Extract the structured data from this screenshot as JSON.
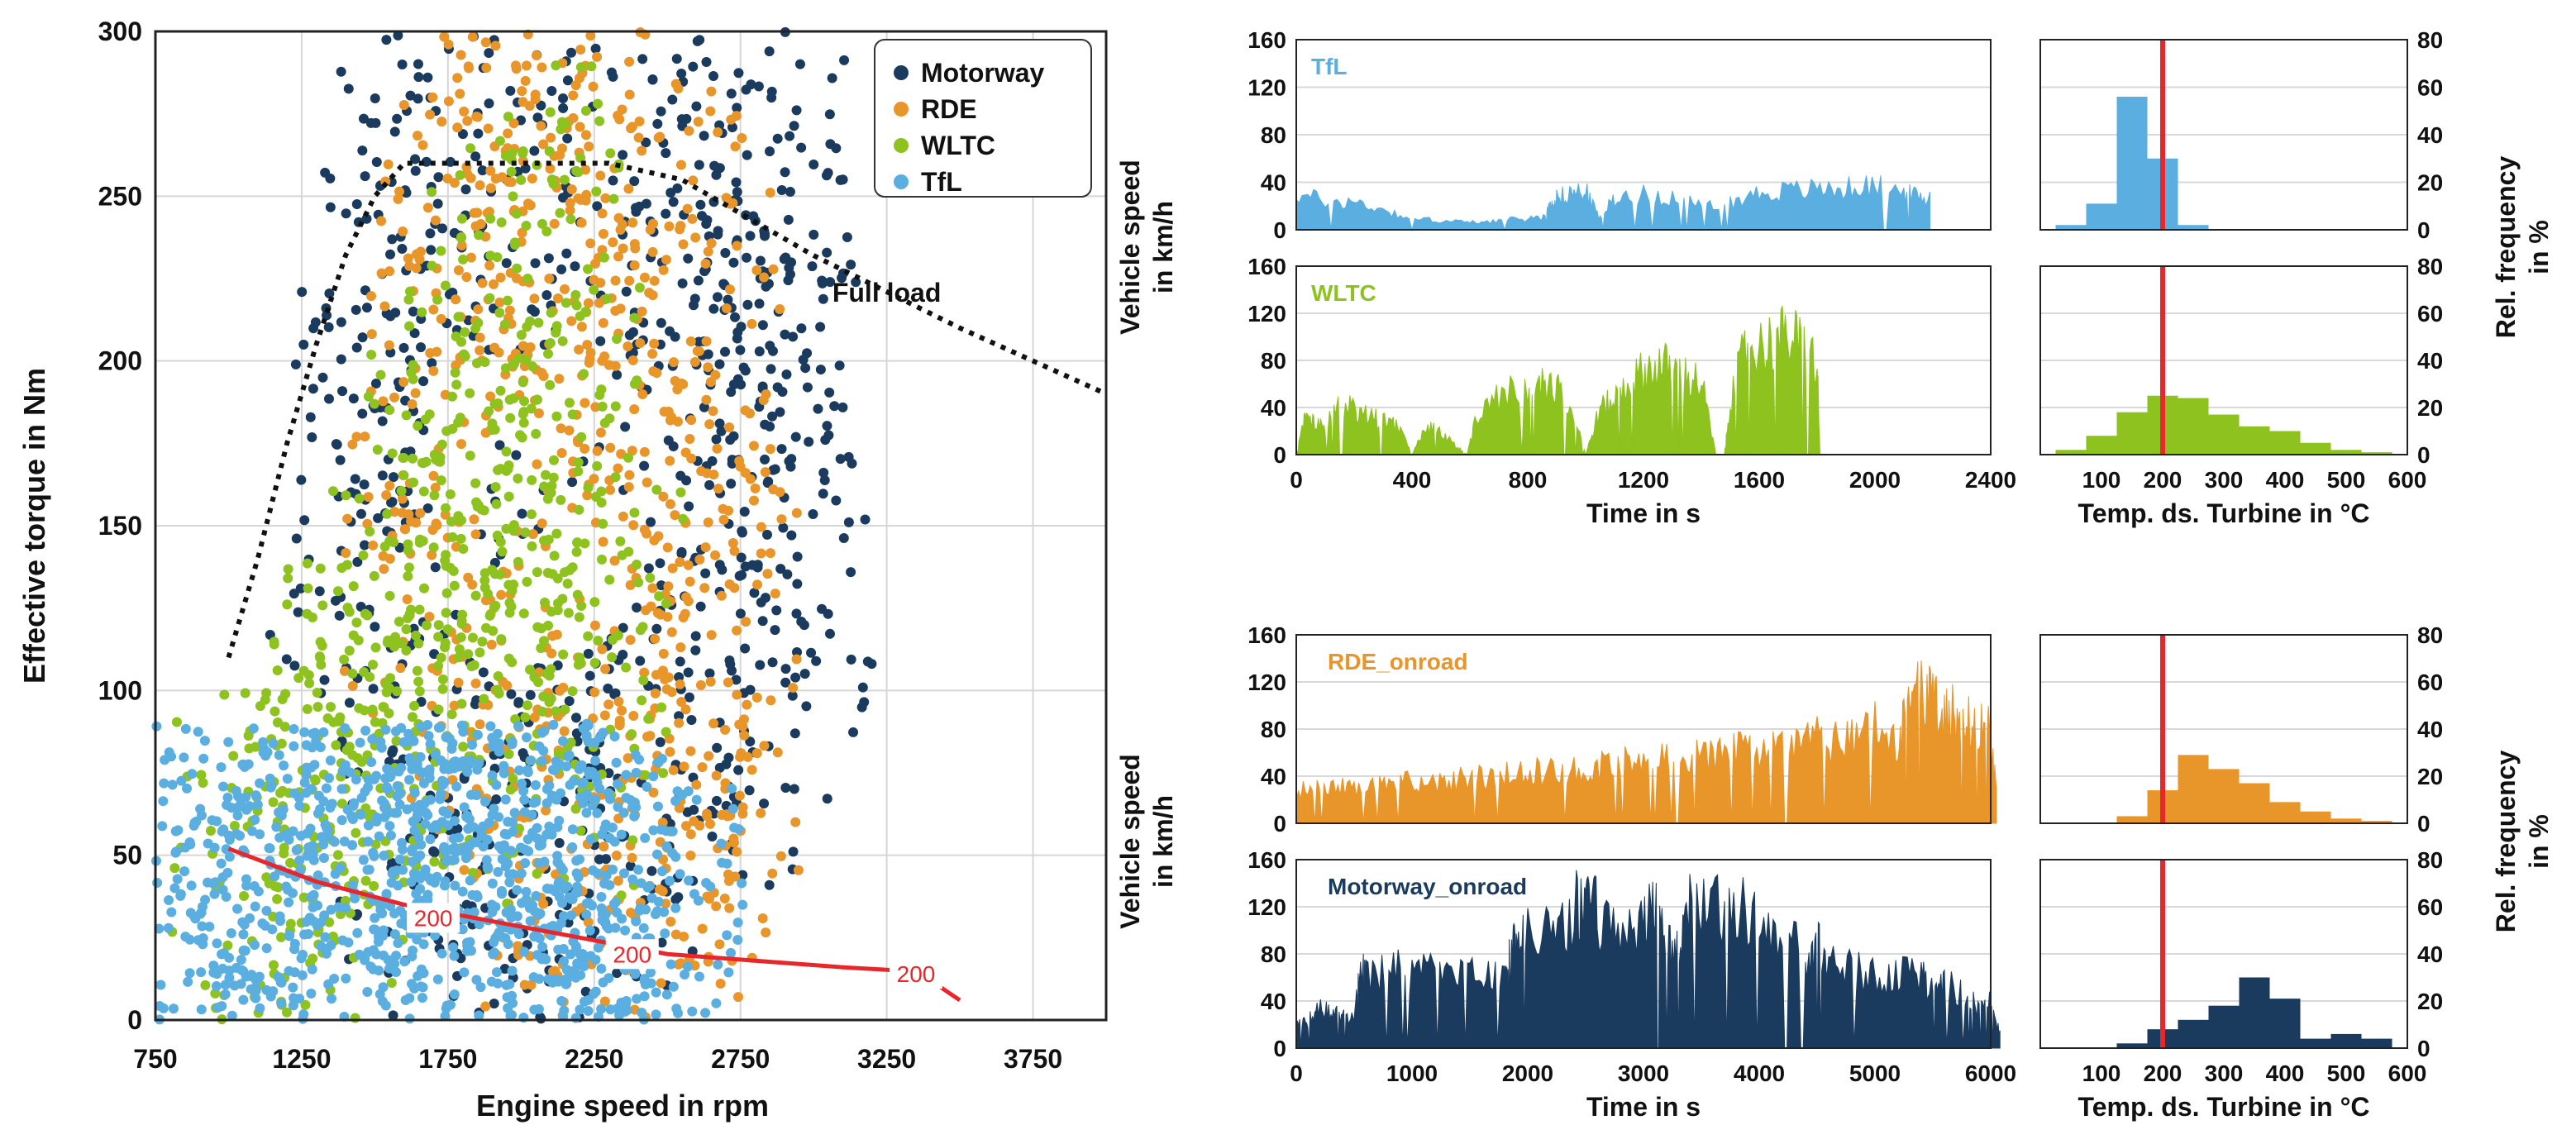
{
  "chart_data": [
    {
      "type": "scatter",
      "title": "",
      "xlabel": "Engine speed in rpm",
      "ylabel": "Effective torque in Nm",
      "xlim": [
        750,
        4000
      ],
      "ylim": [
        0,
        300
      ],
      "xticks": [
        "750",
        "1250",
        "1750",
        "2250",
        "2750",
        "3250",
        "3750"
      ],
      "yticks": [
        "0",
        "50",
        "100",
        "150",
        "200",
        "250",
        "300"
      ],
      "grid": true,
      "legend_position": "top-right",
      "series": [
        {
          "name": "Motorway",
          "color": "#1a3a5e",
          "points": [
            [
              1500,
              215
            ],
            [
              1600,
              240
            ],
            [
              1750,
              255
            ],
            [
              2000,
              258
            ],
            [
              2300,
              255
            ],
            [
              2500,
              250
            ],
            [
              2700,
              245
            ],
            [
              2850,
              240
            ],
            [
              2900,
              200
            ],
            [
              2850,
              160
            ],
            [
              2950,
              120
            ],
            [
              2700,
              90
            ],
            [
              2500,
              70
            ],
            [
              2300,
              60
            ],
            [
              2000,
              55
            ],
            [
              1800,
              50
            ],
            [
              1600,
              70
            ],
            [
              1450,
              130
            ],
            [
              1400,
              170
            ],
            [
              2100,
              120
            ],
            [
              2600,
              180
            ],
            [
              2800,
              220
            ]
          ]
        },
        {
          "name": "RDE",
          "color": "#e8952a",
          "points": [
            [
              1800,
              250
            ],
            [
              2000,
              255
            ],
            [
              2200,
              250
            ],
            [
              2400,
              245
            ],
            [
              2600,
              220
            ],
            [
              2650,
              180
            ],
            [
              2600,
              140
            ],
            [
              2700,
              100
            ],
            [
              2500,
              80
            ],
            [
              2300,
              60
            ],
            [
              2100,
              45
            ],
            [
              1900,
              60
            ],
            [
              1750,
              100
            ],
            [
              1650,
              150
            ],
            [
              1700,
              200
            ],
            [
              2100,
              170
            ],
            [
              2300,
              130
            ],
            [
              2400,
              200
            ],
            [
              1950,
              230
            ],
            [
              2550,
              40
            ],
            [
              2600,
              10
            ]
          ]
        },
        {
          "name": "WLTC",
          "color": "#8dc21f",
          "points": [
            [
              1300,
              60
            ],
            [
              1400,
              90
            ],
            [
              1550,
              120
            ],
            [
              1700,
              150
            ],
            [
              1850,
              180
            ],
            [
              1950,
              210
            ],
            [
              2050,
              240
            ],
            [
              2150,
              215
            ],
            [
              2100,
              160
            ],
            [
              2000,
              120
            ],
            [
              1800,
              100
            ],
            [
              1600,
              80
            ],
            [
              1400,
              70
            ],
            [
              1200,
              55
            ],
            [
              1050,
              50
            ],
            [
              2200,
              90
            ],
            [
              2300,
              110
            ],
            [
              1900,
              140
            ]
          ]
        },
        {
          "name": "TfL",
          "color": "#5aaee0",
          "points": [
            [
              800,
              30
            ],
            [
              900,
              40
            ],
            [
              1000,
              45
            ],
            [
              1200,
              50
            ],
            [
              1400,
              60
            ],
            [
              1500,
              70
            ],
            [
              1600,
              80
            ],
            [
              1700,
              82
            ],
            [
              1800,
              80
            ],
            [
              1900,
              75
            ],
            [
              2000,
              70
            ],
            [
              2100,
              60
            ],
            [
              2200,
              50
            ],
            [
              2300,
              40
            ],
            [
              2400,
              30
            ],
            [
              2500,
              20
            ],
            [
              2550,
              10
            ],
            [
              1100,
              20
            ],
            [
              1300,
              25
            ],
            [
              1700,
              30
            ],
            [
              2000,
              20
            ],
            [
              2200,
              10
            ],
            [
              1500,
              10
            ],
            [
              900,
              10
            ]
          ]
        }
      ],
      "full_load_curve": {
        "label": "Full load",
        "points": [
          [
            1000,
            110
          ],
          [
            1100,
            140
          ],
          [
            1200,
            175
          ],
          [
            1300,
            205
          ],
          [
            1400,
            232
          ],
          [
            1500,
            250
          ],
          [
            1600,
            260
          ],
          [
            2300,
            260
          ],
          [
            2550,
            255
          ],
          [
            3000,
            232
          ],
          [
            3500,
            210
          ],
          [
            4000,
            190
          ]
        ]
      },
      "isoline": {
        "label": "200",
        "color": "#e8272c",
        "points": [
          [
            1000,
            52
          ],
          [
            1300,
            42
          ],
          [
            1600,
            35
          ],
          [
            1900,
            30
          ],
          [
            2200,
            25
          ],
          [
            2500,
            20
          ],
          [
            2800,
            18
          ],
          [
            3100,
            16
          ],
          [
            3300,
            15
          ],
          [
            3400,
            12
          ],
          [
            3500,
            6
          ]
        ],
        "label_positions": [
          [
            1700,
            31
          ],
          [
            2380,
            20
          ],
          [
            3350,
            14
          ]
        ]
      }
    },
    {
      "type": "area",
      "label": "TfL",
      "color": "#5aaee0",
      "xlim": [
        0,
        2400
      ],
      "ylim": [
        0,
        160
      ],
      "xticks": [],
      "yticks": [
        "0",
        "40",
        "80",
        "120",
        "160"
      ],
      "x": [
        0,
        100,
        200,
        300,
        400,
        500,
        600,
        700,
        800,
        860,
        880,
        900,
        950,
        1000,
        1050,
        1100,
        1200,
        1300,
        1400,
        1500,
        1600,
        1700,
        1800,
        1900,
        2000,
        2100,
        2150,
        2190
      ],
      "values": [
        38,
        32,
        30,
        22,
        12,
        10,
        8,
        10,
        12,
        15,
        28,
        35,
        40,
        42,
        12,
        35,
        38,
        36,
        24,
        30,
        40,
        42,
        44,
        45,
        48,
        40,
        36,
        32
      ]
    },
    {
      "type": "bar",
      "label": "TfL histogram",
      "color": "#5aaee0",
      "xlim": [
        0,
        600
      ],
      "ylim": [
        0,
        80
      ],
      "marker_line": 200,
      "marker_color": "#e8272c",
      "xticks": [],
      "yticks": [
        "0",
        "20",
        "40",
        "60",
        "80"
      ],
      "bins": [
        [
          25,
          75
        ],
        [
          75,
          125
        ],
        [
          125,
          175
        ],
        [
          175,
          225
        ],
        [
          225,
          275
        ]
      ],
      "values": [
        2,
        11,
        56,
        30,
        2
      ]
    },
    {
      "type": "area",
      "label": "WLTC",
      "color": "#8dc21f",
      "xlim": [
        0,
        2400
      ],
      "ylim": [
        0,
        160
      ],
      "xticks": [
        "0",
        "400",
        "800",
        "1200",
        "1600",
        "2000",
        "2400"
      ],
      "yticks": [
        "0",
        "40",
        "80",
        "120",
        "160"
      ],
      "xlabel": "Time in s",
      "ylabel": "Vehicle speed in km/h",
      "x": [
        0,
        30,
        60,
        100,
        150,
        200,
        250,
        300,
        350,
        400,
        450,
        500,
        550,
        590,
        620,
        700,
        800,
        850,
        900,
        950,
        1000,
        1010,
        1050,
        1100,
        1150,
        1200,
        1250,
        1300,
        1350,
        1400,
        1450,
        1480,
        1500,
        1550,
        1600,
        1650,
        1700,
        1750,
        1800,
        1810
      ],
      "values": [
        0,
        40,
        35,
        30,
        55,
        50,
        40,
        38,
        32,
        0,
        30,
        25,
        10,
        0,
        40,
        62,
        78,
        74,
        70,
        60,
        0,
        10,
        50,
        60,
        80,
        90,
        98,
        94,
        85,
        80,
        0,
        0,
        60,
        115,
        118,
        125,
        130,
        120,
        100,
        0
      ]
    },
    {
      "type": "bar",
      "label": "WLTC histogram",
      "color": "#8dc21f",
      "xlim": [
        0,
        600
      ],
      "ylim": [
        0,
        80
      ],
      "marker_line": 200,
      "marker_color": "#e8272c",
      "xticks": [
        "100",
        "200",
        "300",
        "400",
        "500",
        "600"
      ],
      "yticks": [
        "0",
        "20",
        "40",
        "60",
        "80"
      ],
      "xlabel": "Temp. ds. Turbine in °C",
      "ylabel": "Rel. frequency in %",
      "bins": [
        [
          25,
          75
        ],
        [
          75,
          125
        ],
        [
          125,
          175
        ],
        [
          175,
          225
        ],
        [
          225,
          275
        ],
        [
          275,
          325
        ],
        [
          325,
          375
        ],
        [
          375,
          425
        ],
        [
          425,
          475
        ],
        [
          475,
          525
        ],
        [
          525,
          575
        ]
      ],
      "values": [
        2,
        8,
        18,
        25,
        24,
        17,
        12,
        10,
        5,
        2,
        1
      ]
    },
    {
      "type": "area",
      "label": "RDE_onroad",
      "color": "#e8952a",
      "xlim": [
        0,
        6000
      ],
      "ylim": [
        0,
        160
      ],
      "xticks": [],
      "yticks": [
        "0",
        "40",
        "80",
        "120",
        "160"
      ],
      "x": [
        0,
        200,
        400,
        600,
        800,
        1000,
        1200,
        1400,
        1600,
        1800,
        2000,
        2200,
        2400,
        2600,
        2800,
        3000,
        3200,
        3400,
        3600,
        3800,
        4000,
        4200,
        4400,
        4600,
        4800,
        5000,
        5200,
        5300,
        5400,
        5500,
        5600,
        5700,
        5800,
        5900,
        6000,
        6050
      ],
      "values": [
        35,
        38,
        40,
        42,
        44,
        45,
        46,
        48,
        50,
        52,
        55,
        58,
        60,
        62,
        65,
        70,
        68,
        72,
        76,
        78,
        80,
        85,
        95,
        90,
        100,
        110,
        80,
        140,
        145,
        130,
        120,
        118,
        115,
        112,
        110,
        30
      ]
    },
    {
      "type": "bar",
      "label": "RDE_onroad histogram",
      "color": "#e8952a",
      "xlim": [
        0,
        600
      ],
      "ylim": [
        0,
        80
      ],
      "marker_line": 200,
      "marker_color": "#e8272c",
      "xticks": [],
      "yticks": [
        "0",
        "20",
        "40",
        "60",
        "80"
      ],
      "bins": [
        [
          125,
          175
        ],
        [
          175,
          225
        ],
        [
          225,
          275
        ],
        [
          275,
          325
        ],
        [
          325,
          375
        ],
        [
          375,
          425
        ],
        [
          425,
          475
        ],
        [
          475,
          525
        ],
        [
          525,
          575
        ]
      ],
      "values": [
        3,
        14,
        29,
        23,
        17,
        9,
        5,
        2,
        1
      ]
    },
    {
      "type": "area",
      "label": "Motorway_onroad",
      "color": "#1a3a5e",
      "xlim": [
        0,
        6000
      ],
      "ylim": [
        0,
        160
      ],
      "xticks": [
        "0",
        "1000",
        "2000",
        "3000",
        "4000",
        "5000",
        "6000"
      ],
      "yticks": [
        "0",
        "40",
        "80",
        "120",
        "160"
      ],
      "xlabel": "Time in s",
      "ylabel": "Vehicle speed in km/h",
      "x": [
        0,
        100,
        200,
        300,
        400,
        500,
        550,
        600,
        800,
        1000,
        1200,
        1400,
        1600,
        1800,
        1850,
        1900,
        2000,
        2200,
        2400,
        2500,
        2600,
        2800,
        3000,
        3100,
        3200,
        3300,
        3400,
        3600,
        3800,
        4000,
        4200,
        4400,
        4500,
        4600,
        4800,
        5000,
        5200,
        5400,
        5500,
        5600,
        5800,
        5900,
        6000,
        6080
      ],
      "values": [
        25,
        30,
        45,
        40,
        35,
        30,
        80,
        82,
        85,
        82,
        80,
        78,
        76,
        72,
        100,
        110,
        125,
        135,
        150,
        160,
        145,
        130,
        140,
        160,
        120,
        110,
        150,
        158,
        150,
        140,
        120,
        100,
        110,
        95,
        85,
        82,
        80,
        82,
        60,
        70,
        60,
        40,
        50,
        15
      ]
    },
    {
      "type": "bar",
      "label": "Motorway_onroad histogram",
      "color": "#1a3a5e",
      "xlim": [
        0,
        600
      ],
      "ylim": [
        0,
        80
      ],
      "marker_line": 200,
      "marker_color": "#e8272c",
      "xticks": [
        "100",
        "200",
        "300",
        "400",
        "500",
        "600"
      ],
      "yticks": [
        "0",
        "20",
        "40",
        "60",
        "80"
      ],
      "xlabel": "Temp. ds. Turbine in °C",
      "ylabel": "Rel. frequency in %",
      "bins": [
        [
          75,
          125
        ],
        [
          125,
          175
        ],
        [
          175,
          225
        ],
        [
          225,
          275
        ],
        [
          275,
          325
        ],
        [
          325,
          375
        ],
        [
          375,
          425
        ],
        [
          425,
          475
        ],
        [
          475,
          525
        ],
        [
          525,
          575
        ]
      ],
      "values": [
        0,
        2,
        8,
        12,
        18,
        30,
        21,
        4,
        6,
        4
      ]
    }
  ],
  "labels": {
    "left_ylabel": "Effective torque in Nm",
    "left_xlabel": "Engine speed in rpm",
    "full_load": "Full load",
    "speed_ylabel_line1": "Vehicle speed",
    "speed_ylabel_line2": "in km/h",
    "freq_ylabel_line1": "Rel. frequency",
    "freq_ylabel_line2": "in %",
    "time_xlabel": "Time in s",
    "temp_xlabel": "Temp. ds. Turbine in °C"
  }
}
